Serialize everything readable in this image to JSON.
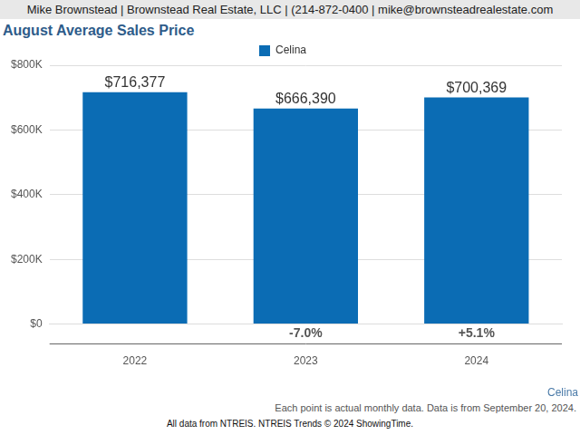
{
  "header": {
    "text": "Mike Brownstead | Brownstead Real Estate, LLC | (214-872-0400 | mike@brownsteadrealestate.com"
  },
  "chart_data": {
    "type": "bar",
    "title": "August Average Sales Price",
    "categories": [
      "2022",
      "2023",
      "2024"
    ],
    "series": [
      {
        "name": "Celina",
        "color": "#0b6cb4",
        "values": [
          716377,
          666390,
          700369
        ],
        "value_labels": [
          "$716,377",
          "$666,390",
          "$700,369"
        ]
      }
    ],
    "annotations": [
      {
        "category": "2023",
        "text": "-7.0%"
      },
      {
        "category": "2024",
        "text": "+5.1%"
      }
    ],
    "ylim": [
      0,
      800000
    ],
    "yticks": [
      {
        "value": 0,
        "label": "$0"
      },
      {
        "value": 200000,
        "label": "$200K"
      },
      {
        "value": 400000,
        "label": "$400K"
      },
      {
        "value": 600000,
        "label": "$600K"
      },
      {
        "value": 800000,
        "label": "$800K"
      }
    ],
    "grid": true,
    "legend": "top",
    "data_labels": true
  },
  "footer": {
    "series_label": "Celina",
    "note": "Each point is actual monthly data. Data is from September 20, 2024.",
    "credit": "All data from NTREIS. NTREIS Trends © 2024 ShowingTime."
  }
}
